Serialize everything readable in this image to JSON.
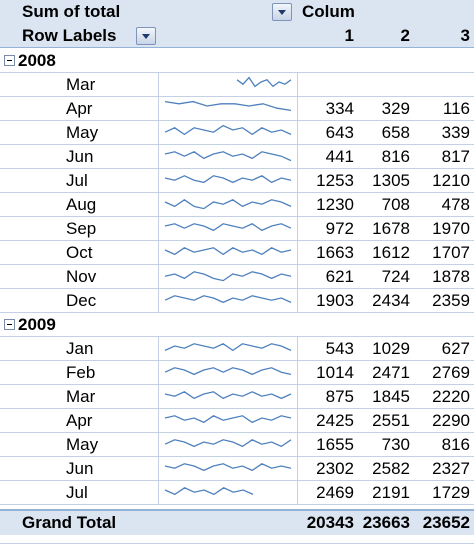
{
  "header": {
    "values_label": "Sum of total",
    "column_labels": "Colum",
    "row_labels": "Row Labels",
    "columns": [
      "1",
      "2",
      "3"
    ]
  },
  "groups": [
    {
      "year": "2008",
      "rows": [
        {
          "month": "Mar",
          "v": [
            "",
            "",
            ""
          ],
          "spark": [
            6,
            4,
            7,
            3,
            5,
            6,
            3,
            5,
            4,
            6
          ]
        },
        {
          "month": "Apr",
          "v": [
            "334",
            "329",
            "116"
          ],
          "spark": [
            7,
            6,
            7,
            5,
            6,
            6,
            5,
            6,
            4,
            3
          ]
        },
        {
          "month": "May",
          "v": [
            "643",
            "658",
            "339"
          ],
          "spark": [
            4,
            6,
            3,
            6,
            5,
            4,
            7,
            5,
            6,
            3,
            6,
            4,
            5,
            3
          ]
        },
        {
          "month": "Jun",
          "v": [
            "441",
            "816",
            "817"
          ],
          "spark": [
            5,
            6,
            4,
            6,
            3,
            5,
            6,
            4,
            5,
            3,
            6,
            5,
            4,
            2
          ]
        },
        {
          "month": "Jul",
          "v": [
            "1253",
            "1305",
            "1210"
          ],
          "spark": [
            5,
            4,
            6,
            4,
            3,
            6,
            5,
            3,
            5,
            4,
            6,
            3,
            5,
            4
          ]
        },
        {
          "month": "Aug",
          "v": [
            "1230",
            "708",
            "478"
          ],
          "spark": [
            5,
            3,
            6,
            3,
            2,
            5,
            4,
            6,
            3,
            5,
            4,
            6,
            5,
            3
          ]
        },
        {
          "month": "Sep",
          "v": [
            "972",
            "1678",
            "1970"
          ],
          "spark": [
            5,
            6,
            4,
            6,
            5,
            3,
            6,
            5,
            4,
            6,
            3,
            5,
            6,
            4
          ]
        },
        {
          "month": "Oct",
          "v": [
            "1663",
            "1612",
            "1707"
          ],
          "spark": [
            5,
            3,
            6,
            4,
            5,
            6,
            3,
            6,
            4,
            5,
            3,
            6,
            4,
            5
          ]
        },
        {
          "month": "Nov",
          "v": [
            "621",
            "724",
            "1878"
          ],
          "spark": [
            4,
            5,
            3,
            6,
            5,
            3,
            2,
            5,
            4,
            6,
            5,
            3,
            5,
            4
          ]
        },
        {
          "month": "Dec",
          "v": [
            "1903",
            "2434",
            "2359"
          ],
          "spark": [
            4,
            6,
            5,
            4,
            6,
            5,
            3,
            5,
            4,
            6,
            5,
            4,
            5,
            3
          ]
        }
      ]
    },
    {
      "year": "2009",
      "rows": [
        {
          "month": "Jan",
          "v": [
            "543",
            "1029",
            "627"
          ],
          "spark": [
            3,
            5,
            4,
            6,
            5,
            4,
            6,
            3,
            6,
            5,
            4,
            6,
            5,
            3
          ]
        },
        {
          "month": "Feb",
          "v": [
            "1014",
            "2471",
            "2769"
          ],
          "spark": [
            4,
            6,
            5,
            3,
            5,
            6,
            4,
            6,
            5,
            3,
            5,
            6,
            4,
            3
          ]
        },
        {
          "month": "Mar",
          "v": [
            "875",
            "1845",
            "2220"
          ],
          "spark": [
            5,
            4,
            6,
            3,
            5,
            6,
            3,
            5,
            4,
            6,
            4,
            5,
            3,
            5
          ]
        },
        {
          "month": "Apr",
          "v": [
            "2425",
            "2551",
            "2290"
          ],
          "spark": [
            5,
            6,
            4,
            5,
            3,
            6,
            4,
            5,
            6,
            3,
            5,
            4,
            6,
            5
          ]
        },
        {
          "month": "May",
          "v": [
            "1655",
            "730",
            "816"
          ],
          "spark": [
            4,
            6,
            5,
            3,
            5,
            4,
            6,
            5,
            3,
            6,
            4,
            5,
            3,
            6
          ]
        },
        {
          "month": "Jun",
          "v": [
            "2302",
            "2582",
            "2327"
          ],
          "spark": [
            5,
            4,
            6,
            5,
            3,
            5,
            6,
            4,
            5,
            3,
            6,
            4,
            5,
            4
          ]
        },
        {
          "month": "Jul",
          "v": [
            "2469",
            "2191",
            "1729"
          ],
          "spark": [
            5,
            3,
            6,
            4,
            5,
            3,
            6,
            4,
            5,
            3
          ]
        }
      ]
    }
  ],
  "grand_total": {
    "label": "Grand Total",
    "v": [
      "20343",
      "23663",
      "23652"
    ]
  },
  "colors": {
    "header_fill": "#dbe5f1",
    "gridline": "#c4d0e4",
    "sparkline": "#4f81bd"
  },
  "icons": {
    "collapse": "minus-box-icon",
    "filter": "dropdown-arrow-icon"
  }
}
